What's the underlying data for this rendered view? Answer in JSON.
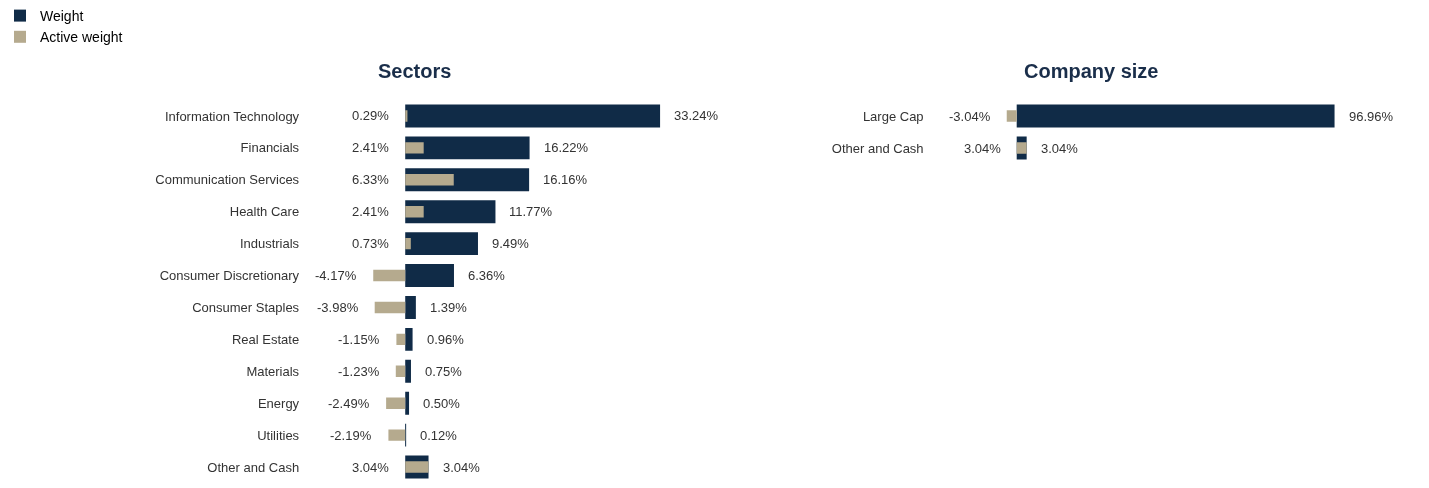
{
  "chart_data": [
    {
      "type": "bar",
      "title": "Sectors",
      "orientation": "horizontal",
      "tick_labels": "y",
      "legend": "top left",
      "categories": [
        "Information Technology",
        "Financials",
        "Communication Services",
        "Health Care",
        "Industrials",
        "Consumer Discretionary",
        "Consumer Staples",
        "Real Estate",
        "Materials",
        "Energy",
        "Utilities",
        "Other and Cash"
      ],
      "series": [
        {
          "name": "Weight",
          "color": "#102b47",
          "values": [
            33.24,
            16.22,
            16.16,
            11.77,
            9.49,
            6.36,
            1.39,
            0.96,
            0.75,
            0.5,
            0.12,
            3.04
          ],
          "value_labels": [
            "33.24%",
            "16.22%",
            "16.16%",
            "11.77%",
            "9.49%",
            "6.36%",
            "1.39%",
            "0.96%",
            "0.75%",
            "0.50%",
            "0.12%",
            "3.04%"
          ]
        },
        {
          "name": "Active weight",
          "color": "#b5aa8e",
          "values": [
            0.29,
            2.41,
            6.33,
            2.41,
            0.73,
            -4.17,
            -3.98,
            -1.15,
            -1.23,
            -2.49,
            -2.19,
            3.04
          ],
          "value_labels": [
            "0.29%",
            "2.41%",
            "6.33%",
            "2.41%",
            "0.73%",
            "-4.17%",
            "-3.98%",
            "-1.15%",
            "-1.23%",
            "-2.49%",
            "-2.19%",
            "3.04%"
          ]
        }
      ]
    },
    {
      "type": "bar",
      "title": "Company size",
      "orientation": "horizontal",
      "tick_labels": "y",
      "legend": false,
      "categories": [
        "Large Cap",
        "Other and Cash"
      ],
      "series": [
        {
          "color": "#102b47",
          "values": [
            96.96,
            3.04
          ],
          "value_labels": [
            "96.96%",
            "3.04%"
          ]
        },
        {
          "color": "#b5aa8e",
          "values": [
            -3.04,
            3.04
          ],
          "value_labels": [
            "-3.04%",
            "3.04%"
          ]
        }
      ]
    }
  ]
}
